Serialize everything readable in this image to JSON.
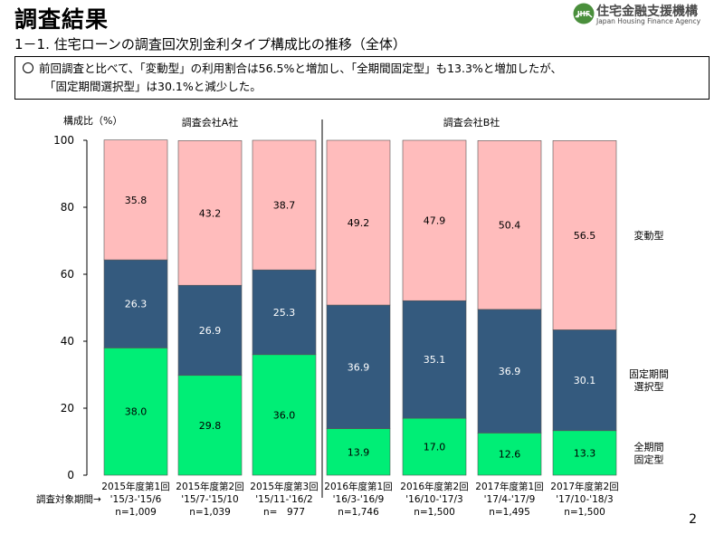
{
  "header": {
    "title": "調査結果",
    "subtitle": "1－1. 住宅ローンの調査回次別金利タイプ構成比の推移（全体）",
    "logo_name": "住宅金融支援機構",
    "logo_en": "Japan Housing Finance Agency",
    "logo_mark": "JHF"
  },
  "summary": {
    "line1": "前回調査と比べて、「変動型」の利用割合は56.5%と増加し、「全期間固定型」も13.3%と増加したが、",
    "line2": "「固定期間選択型」は30.1%と減少した。"
  },
  "page_number": "2",
  "chart_data": {
    "type": "bar",
    "stacked": true,
    "ylabel": "構成比（%）",
    "ylim": [
      0,
      100
    ],
    "yticks": [
      0,
      20,
      40,
      60,
      80,
      100
    ],
    "grid": false,
    "x_axis_prefix": "調査対象期間→",
    "groups": [
      {
        "label": "調査会社A社",
        "start": 0,
        "end": 2
      },
      {
        "label": "調査会社B社",
        "start": 3,
        "end": 6
      }
    ],
    "categories": [
      [
        "2015年度第1回",
        "'15/3-'15/6",
        "n=1,009"
      ],
      [
        "2015年度第2回",
        "'15/7-'15/10",
        "n=1,039"
      ],
      [
        "2015年度第3回",
        "'15/11-'16/2",
        "n=　977"
      ],
      [
        "2016年度第1回",
        "'16/3-'16/9",
        "n=1,746"
      ],
      [
        "2016年度第2回",
        "'16/10-'17/3",
        "n=1,500"
      ],
      [
        "2017年度第1回",
        "'17/4-'17/9",
        "n=1,495"
      ],
      [
        "2017年度第2回",
        "'17/10-'18/3",
        "n=1,500"
      ]
    ],
    "series": [
      {
        "name": "全期間固定型",
        "legend": [
          "全期間",
          "固定型"
        ],
        "color": "#00ee76",
        "values": [
          38.0,
          29.8,
          36.0,
          13.9,
          17.0,
          12.6,
          13.3
        ],
        "label_color": "#000000"
      },
      {
        "name": "固定期間選択型",
        "legend": [
          "固定期間",
          "選択型"
        ],
        "color": "#345a7e",
        "values": [
          26.3,
          26.9,
          25.3,
          36.9,
          35.1,
          36.9,
          30.1
        ],
        "label_color": "#ffffff"
      },
      {
        "name": "変動型",
        "legend": [
          "変動型"
        ],
        "color": "#ffbcbc",
        "values": [
          35.8,
          43.2,
          38.7,
          49.2,
          47.9,
          50.4,
          56.5
        ],
        "label_color": "#000000"
      }
    ]
  }
}
